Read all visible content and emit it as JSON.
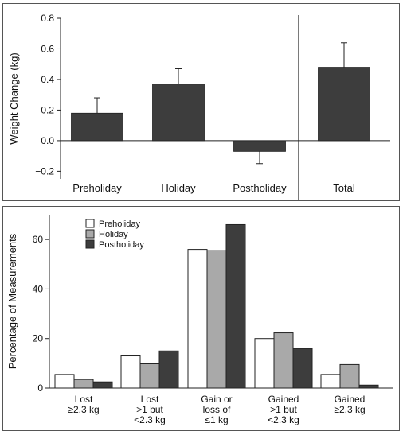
{
  "chart_data": [
    {
      "type": "bar",
      "categories": [
        "Preholiday",
        "Holiday",
        "Postholiday",
        "Total"
      ],
      "values": [
        0.18,
        0.37,
        -0.07,
        0.48
      ],
      "errors": [
        0.1,
        0.1,
        0.08,
        0.16
      ],
      "ylabel": "Weight Change (kg)",
      "ylim": [
        -0.25,
        0.8
      ],
      "yticks": [
        "0.8",
        "0.6",
        "0.4",
        "0.2",
        "0.0",
        "−0.2"
      ],
      "bar_color": "#3d3d3d",
      "separator_before": "Total",
      "grid": false
    },
    {
      "type": "bar",
      "categories": [
        [
          "Lost",
          "≥2.3 kg"
        ],
        [
          "Lost",
          ">1 but",
          "<2.3 kg"
        ],
        [
          "Gain or",
          "loss of",
          "≤1 kg"
        ],
        [
          "Gained",
          ">1 but",
          "<2.3 kg"
        ],
        [
          "Gained",
          "≥2.3 kg"
        ]
      ],
      "series": [
        {
          "name": "Preholiday",
          "color": "#ffffff",
          "values": [
            5.5,
            13,
            56,
            20,
            5.5
          ]
        },
        {
          "name": "Holiday",
          "color": "#a9a9a9",
          "values": [
            3.5,
            9.8,
            55.5,
            22.3,
            9.5
          ]
        },
        {
          "name": "Postholiday",
          "color": "#3d3d3d",
          "values": [
            2.5,
            15,
            66,
            16,
            1.2
          ]
        }
      ],
      "ylabel": "Percentage of Measurements",
      "ylim": [
        0,
        70
      ],
      "yticks": [
        "0",
        "20",
        "40",
        "60"
      ],
      "legend_position": "top-left",
      "grid": false
    }
  ]
}
